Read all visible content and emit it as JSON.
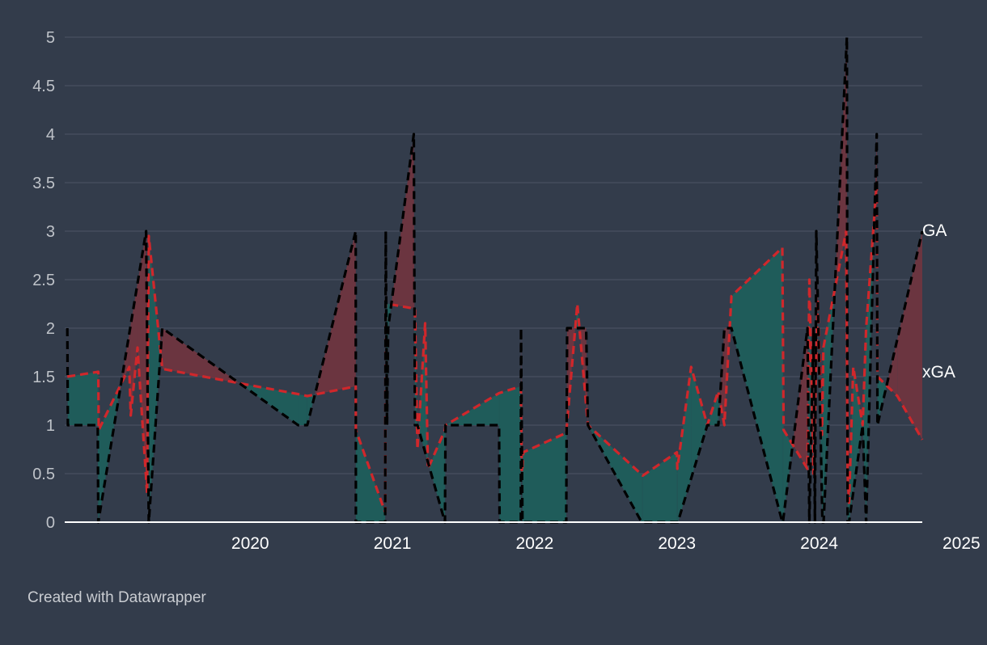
{
  "chart_data": {
    "type": "line",
    "title": "",
    "xlabel": "",
    "ylabel": "",
    "xlim": [
      2019.196,
      2025.225
    ],
    "ylim": [
      0,
      5
    ],
    "yticks": [
      "0",
      "0.5",
      "1",
      "1.5",
      "2",
      "2.5",
      "3",
      "3.5",
      "4",
      "4.5",
      "5"
    ],
    "xticks": [
      "2020",
      "2021",
      "2022",
      "2023",
      "2024",
      "2025"
    ],
    "grid": true,
    "series": [
      {
        "name": "GA",
        "color": "#000000",
        "x": [
          2019.214,
          2019.218,
          2019.428,
          2019.432,
          2019.768,
          2019.787,
          2019.882,
          2020.837,
          2020.901,
          2021.242,
          2021.243,
          2021.449,
          2021.453,
          2021.462,
          2021.47,
          2021.65,
          2021.658,
          2021.676,
          2021.869,
          2021.873,
          2022.25,
          2022.253,
          2022.403,
          2022.404,
          2022.414,
          2022.419,
          2022.722,
          2022.728,
          2022.862,
          2022.874,
          2023.252,
          2023.261,
          2023.503,
          2023.507,
          2023.714,
          2023.73,
          2023.791,
          2023.834,
          2023.883,
          2024.241,
          2024.245,
          2024.418,
          2024.431,
          2024.46,
          2024.47,
          2024.48,
          2024.523,
          2024.531,
          2024.695,
          2024.7,
          2024.71,
          2024.806,
          2024.83,
          2024.905,
          2024.91,
          2025.225
        ],
        "values": [
          2,
          1,
          1,
          0,
          3,
          0,
          2,
          1,
          1,
          3,
          0,
          0,
          3,
          1,
          2,
          4,
          1,
          1,
          0,
          1,
          1,
          0,
          0,
          2,
          0,
          0,
          0,
          2,
          2,
          1,
          0,
          0,
          0,
          0,
          1,
          1,
          1,
          2,
          2,
          0,
          0,
          2,
          0,
          2,
          0,
          3,
          0,
          0,
          5,
          0,
          0,
          1,
          0,
          4,
          1,
          3
        ]
      },
      {
        "name": "xGA",
        "color": "#d0272b",
        "x": [
          2019.214,
          2019.432,
          2019.435,
          2019.65,
          2019.66,
          2019.708,
          2019.775,
          2019.787,
          2019.882,
          2020.837,
          2020.901,
          2021.242,
          2021.243,
          2021.449,
          2021.453,
          2021.47,
          2021.658,
          2021.676,
          2021.73,
          2021.75,
          2021.869,
          2021.873,
          2022.25,
          2022.403,
          2022.41,
          2022.419,
          2022.722,
          2022.8,
          2022.874,
          2023.26,
          2023.5,
          2023.503,
          2023.6,
          2023.714,
          2023.79,
          2023.834,
          2023.883,
          2024.241,
          2024.25,
          2024.418,
          2024.431,
          2024.46,
          2024.49,
          2024.52,
          2024.53,
          2024.69,
          2024.7,
          2024.71,
          2024.74,
          2024.806,
          2024.83,
          2024.905,
          2024.91,
          2025.05,
          2025.225
        ],
        "values": [
          1.5,
          1.55,
          0.95,
          1.6,
          1.1,
          1.8,
          0.3,
          2.95,
          1.58,
          1.32,
          1.3,
          1.4,
          0.95,
          0.1,
          2.28,
          2.25,
          2.2,
          0.75,
          2.05,
          0.55,
          0.95,
          1.0,
          1.33,
          1.4,
          0.45,
          0.72,
          0.92,
          2.25,
          1.0,
          0.48,
          0.72,
          0.55,
          1.6,
          1.0,
          1.35,
          1.0,
          2.33,
          2.83,
          0.95,
          0.55,
          2.5,
          0.5,
          2.3,
          0.9,
          1.8,
          3.0,
          0.5,
          0.2,
          1.6,
          1.0,
          2.0,
          3.5,
          1.5,
          1.3,
          0.85
        ]
      }
    ],
    "fill": {
      "over_color": "#6b3540",
      "under_color": "#1f5c5a"
    },
    "credit": "Created with Datawrapper"
  }
}
